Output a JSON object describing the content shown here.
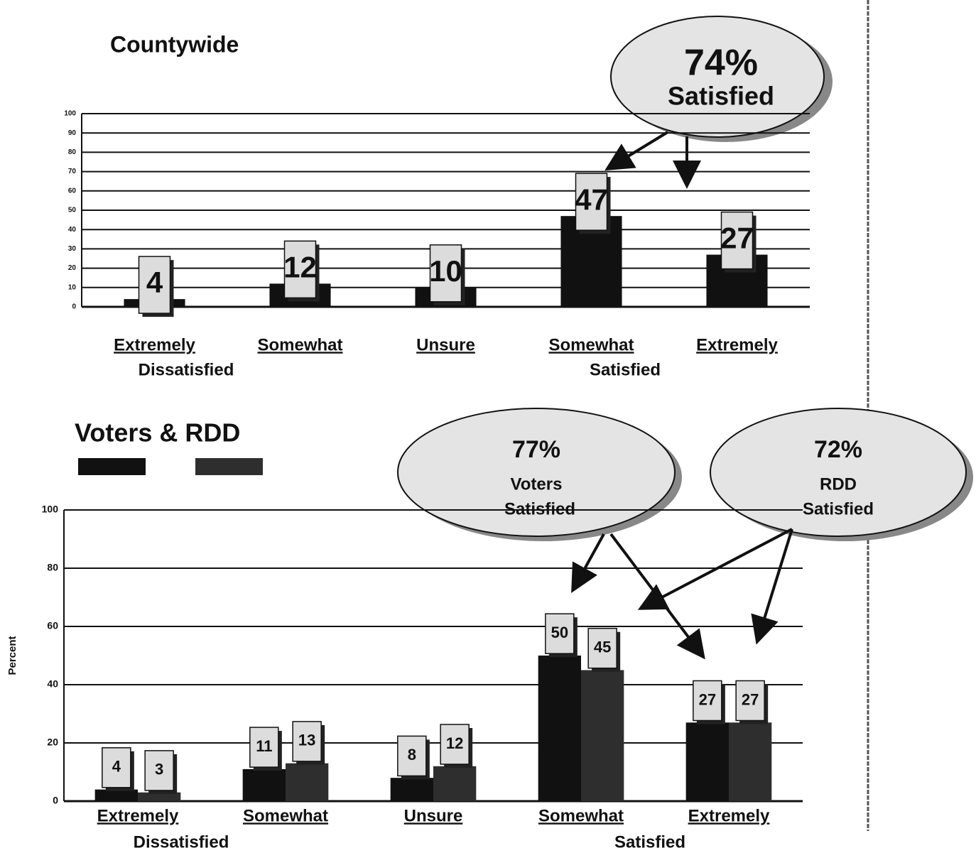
{
  "chart_data": [
    {
      "type": "bar",
      "title": "Countywide",
      "categories": [
        "Extremely",
        "Somewhat",
        "Unsure",
        "Somewhat",
        "Extremely"
      ],
      "category_groups": [
        "Dissatisfied",
        "Satisfied"
      ],
      "values": [
        4,
        12,
        10,
        47,
        27
      ],
      "color": "#111111",
      "ylim": [
        0,
        100
      ],
      "yticks": [
        0,
        10,
        20,
        30,
        40,
        50,
        60,
        70,
        80,
        90,
        100
      ],
      "grid": true,
      "annotations": [
        "74%",
        "Satisfied"
      ]
    },
    {
      "type": "bar",
      "title": "Voters & RDD",
      "y_label": "Percent",
      "categories": [
        "Extremely",
        "Somewhat",
        "Unsure",
        "Somewhat",
        "Extremely"
      ],
      "category_groups": [
        "Dissatisfied",
        "Satisfied"
      ],
      "series": [
        {
          "color": "#111111",
          "values": [
            4,
            11,
            8,
            50,
            27
          ]
        },
        {
          "color": "#2e2e2e",
          "values": [
            3,
            13,
            12,
            45,
            27
          ]
        }
      ],
      "ylim": [
        0,
        100
      ],
      "yticks": [
        0,
        20,
        40,
        60,
        80,
        100
      ],
      "grid": true,
      "annotations": [
        "77%",
        "Voters",
        "Satisfied",
        "72%",
        "RDD",
        "Satisfied"
      ]
    }
  ]
}
